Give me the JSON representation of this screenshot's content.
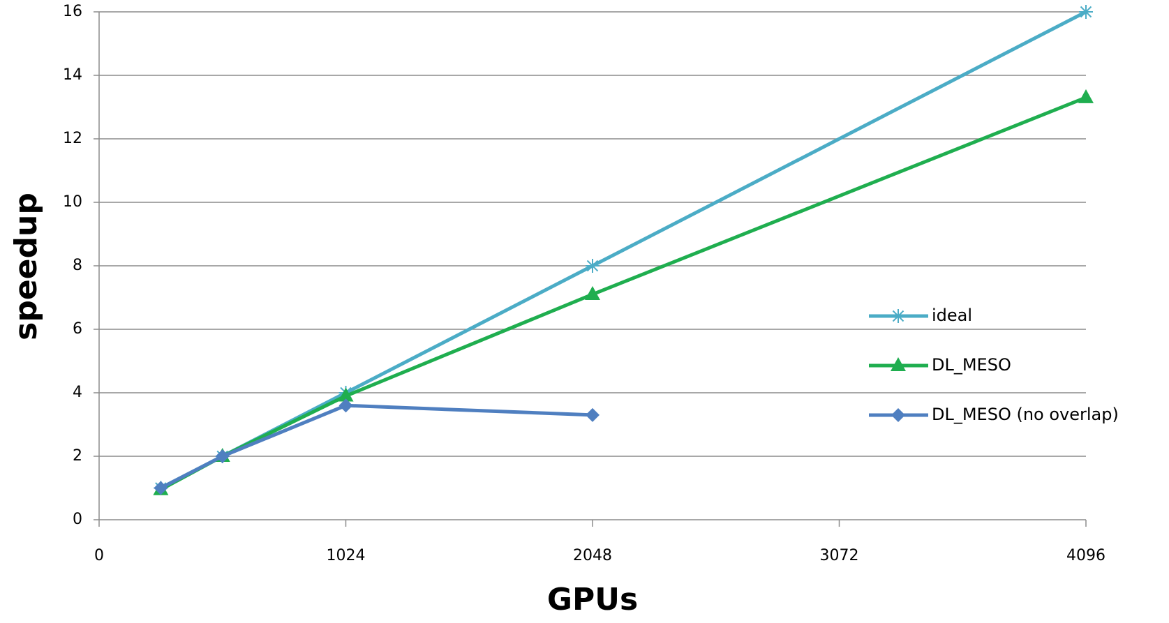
{
  "chart_data": {
    "type": "line",
    "x_label": "GPUs",
    "y_label": "speedup",
    "x": [
      256,
      512,
      1024,
      2048,
      4096
    ],
    "series": [
      {
        "name": "ideal",
        "color": "#4bacc6",
        "marker": "star",
        "values": [
          1,
          2,
          4,
          8,
          16
        ]
      },
      {
        "name": "DL_MESO",
        "color": "#1fae4f",
        "marker": "triangle",
        "values": [
          0.95,
          2,
          3.9,
          7.1,
          13.3
        ]
      },
      {
        "name": "DL_MESO (no overlap)",
        "color": "#4f7fc0",
        "marker": "diamond",
        "values": [
          1,
          2,
          3.6,
          3.3,
          null
        ]
      }
    ],
    "xlim": [
      0,
      4096
    ],
    "xticks": [
      0,
      1024,
      2048,
      3072,
      4096
    ],
    "ylim": [
      0,
      16
    ],
    "yticks": [
      0,
      2,
      4,
      6,
      8,
      10,
      12,
      14,
      16
    ],
    "grid": true,
    "legend": "right"
  }
}
